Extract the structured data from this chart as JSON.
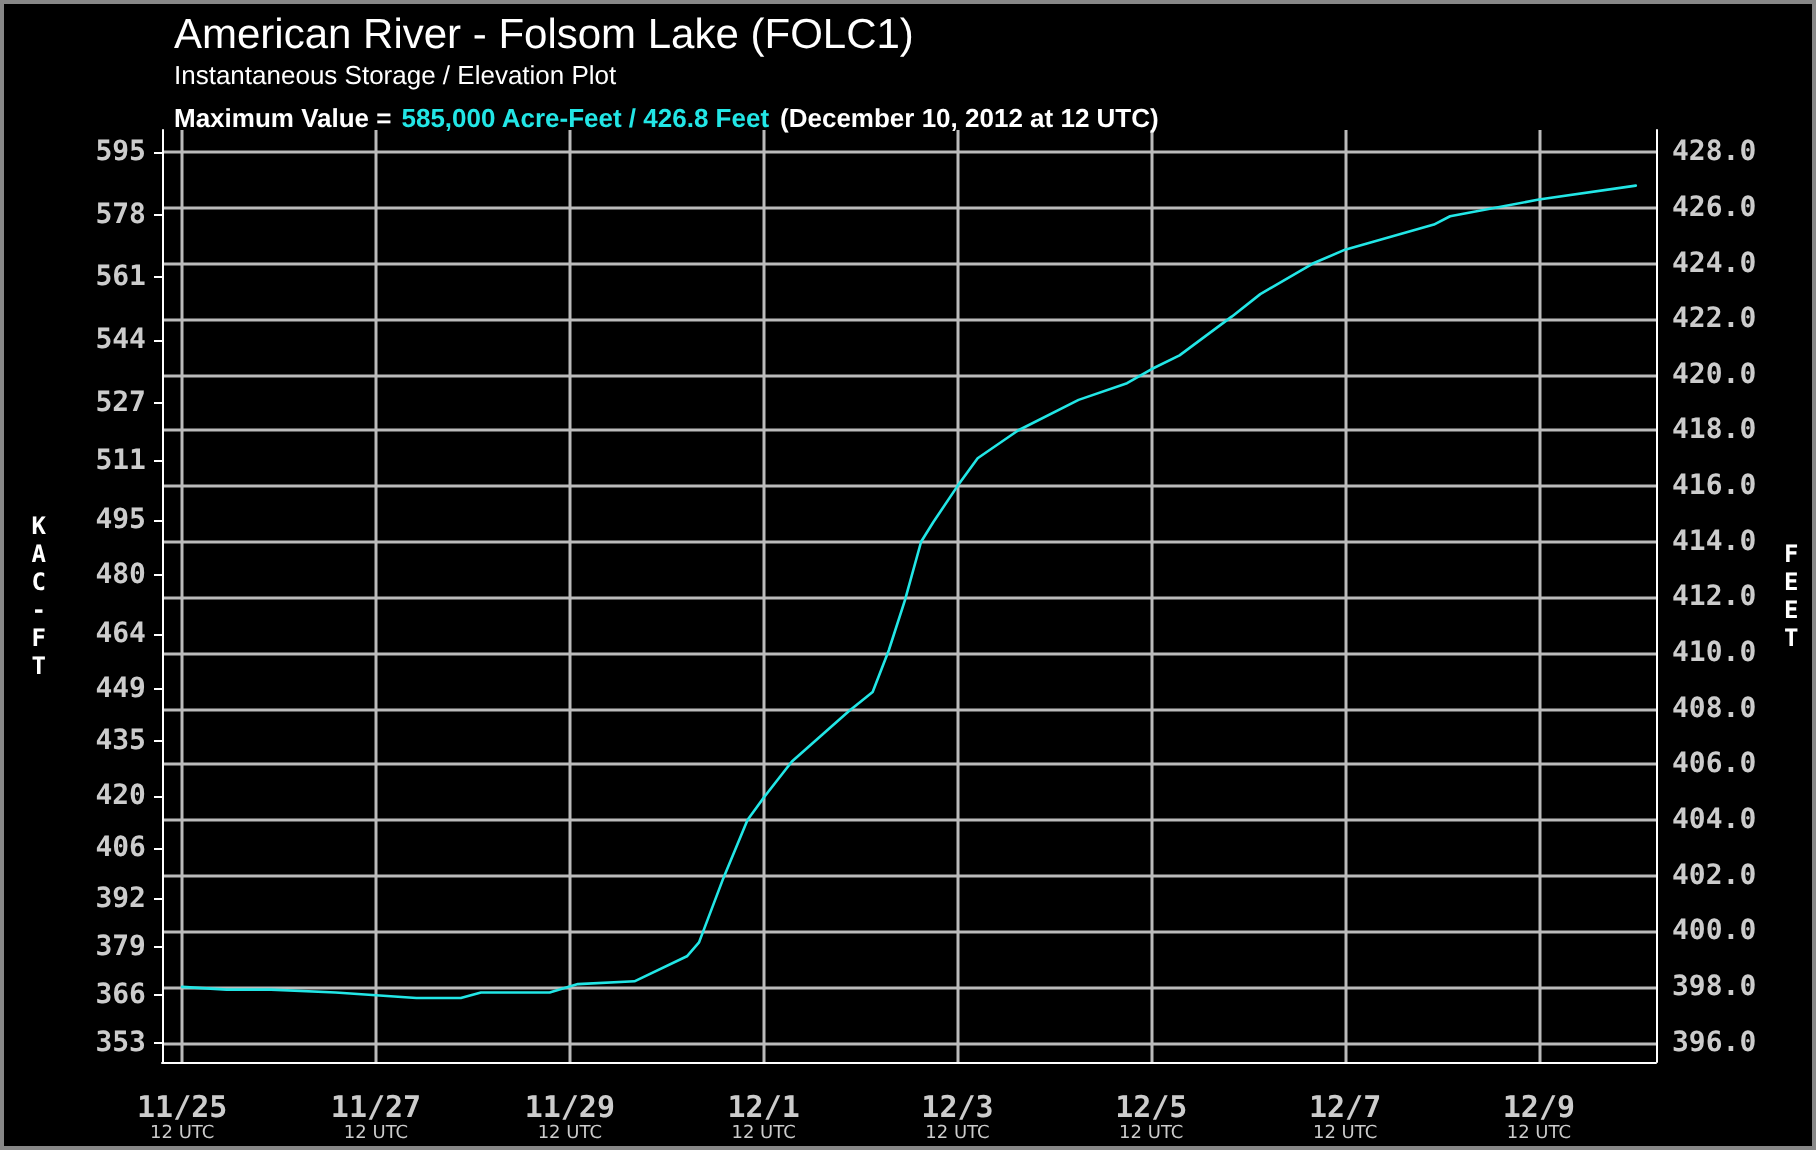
{
  "chart_data": {
    "type": "line",
    "title": "American River - Folsom Lake (FOLC1)",
    "subtitle": "Instantaneous Storage / Elevation Plot",
    "annotations": [
      "Maximum Value =",
      "585,000 Acre-Feet / 426.8 Feet",
      "(December 10, 2012 at 12 UTC)"
    ],
    "ylabel": "KAC-FT",
    "y2label": "FEET",
    "x": [
      "2012-11-25T12:00",
      "2012-11-25T23:00",
      "2012-11-26T10:00",
      "2012-11-27T02:00",
      "2012-11-27T22:00",
      "2012-11-28T09:00",
      "2012-11-28T14:00",
      "2012-11-29T07:00",
      "2012-11-29T14:00",
      "2012-11-30T04:00",
      "2012-11-30T17:00",
      "2012-11-30T20:00",
      "2012-12-01T02:00",
      "2012-12-01T08:00",
      "2012-12-01T12:00",
      "2012-12-01T19:00",
      "2012-12-02T02:00",
      "2012-12-02T09:00",
      "2012-12-02T15:00",
      "2012-12-02T19:00",
      "2012-12-02T23:00",
      "2012-12-03T03:00",
      "2012-12-03T06:00",
      "2012-12-03T12:00",
      "2012-12-03T17:00",
      "2012-12-04T03:00",
      "2012-12-04T18:00",
      "2012-12-05T06:00",
      "2012-12-05T12:00",
      "2012-12-05T19:00",
      "2012-12-06T08:00",
      "2012-12-06T15:00",
      "2012-12-07T04:00",
      "2012-12-07T12:00",
      "2012-12-08T10:00",
      "2012-12-08T14:00",
      "2012-12-09T12:00",
      "2012-12-10T12:00"
    ],
    "series": [
      {
        "color": "#22e6e6",
        "axis": "y2",
        "values": [
          398.0,
          397.9,
          397.9,
          397.8,
          397.6,
          397.6,
          397.8,
          397.8,
          398.1,
          398.2,
          399.1,
          399.6,
          401.9,
          404.0,
          404.8,
          406.1,
          407.0,
          407.9,
          408.6,
          410.1,
          411.9,
          414.0,
          414.7,
          416.0,
          417.0,
          418.0,
          419.1,
          419.7,
          420.2,
          420.7,
          422.1,
          422.9,
          424.0,
          424.5,
          425.4,
          425.7,
          426.3,
          426.8
        ]
      }
    ],
    "xlim": [
      "2012-11-25T07:00",
      "2012-12-10T17:00"
    ],
    "xticks": [
      {
        "value": "2012-11-25T12:00",
        "label": "11/25\n12 UTC"
      },
      {
        "value": "2012-11-27T12:00",
        "label": "11/27\n12 UTC"
      },
      {
        "value": "2012-11-29T12:00",
        "label": "11/29\n12 UTC"
      },
      {
        "value": "2012-12-01T12:00",
        "label": "12/1\n12 UTC"
      },
      {
        "value": "2012-12-03T12:00",
        "label": "12/3\n12 UTC"
      },
      {
        "value": "2012-12-05T12:00",
        "label": "12/5\n12 UTC"
      },
      {
        "value": "2012-12-07T12:00",
        "label": "12/7\n12 UTC"
      },
      {
        "value": "2012-12-09T12:00",
        "label": "12/9\n12 UTC"
      }
    ],
    "ylim": [
      347.7,
      601.1
    ],
    "yticks": [
      353,
      366,
      379,
      392,
      406,
      420,
      435,
      449,
      464,
      480,
      495,
      511,
      527,
      544,
      561,
      578,
      595
    ],
    "y2lim": [
      395.3,
      428.8
    ],
    "y2ticks": [
      {
        "value": 396,
        "label": "396.0"
      },
      {
        "value": 398,
        "label": "398.0"
      },
      {
        "value": 400,
        "label": "400.0"
      },
      {
        "value": 402,
        "label": "402.0"
      },
      {
        "value": 404,
        "label": "404.0"
      },
      {
        "value": 406,
        "label": "406.0"
      },
      {
        "value": 408,
        "label": "408.0"
      },
      {
        "value": 410,
        "label": "410.0"
      },
      {
        "value": 412,
        "label": "412.0"
      },
      {
        "value": 414,
        "label": "414.0"
      },
      {
        "value": 416,
        "label": "416.0"
      },
      {
        "value": 418,
        "label": "418.0"
      },
      {
        "value": 420,
        "label": "420.0"
      },
      {
        "value": 422,
        "label": "422.0"
      },
      {
        "value": 424,
        "label": "424.0"
      },
      {
        "value": 426,
        "label": "426.0"
      },
      {
        "value": 428,
        "label": "428.0"
      }
    ],
    "grid": true,
    "marker": "none",
    "line_style": "solid"
  }
}
